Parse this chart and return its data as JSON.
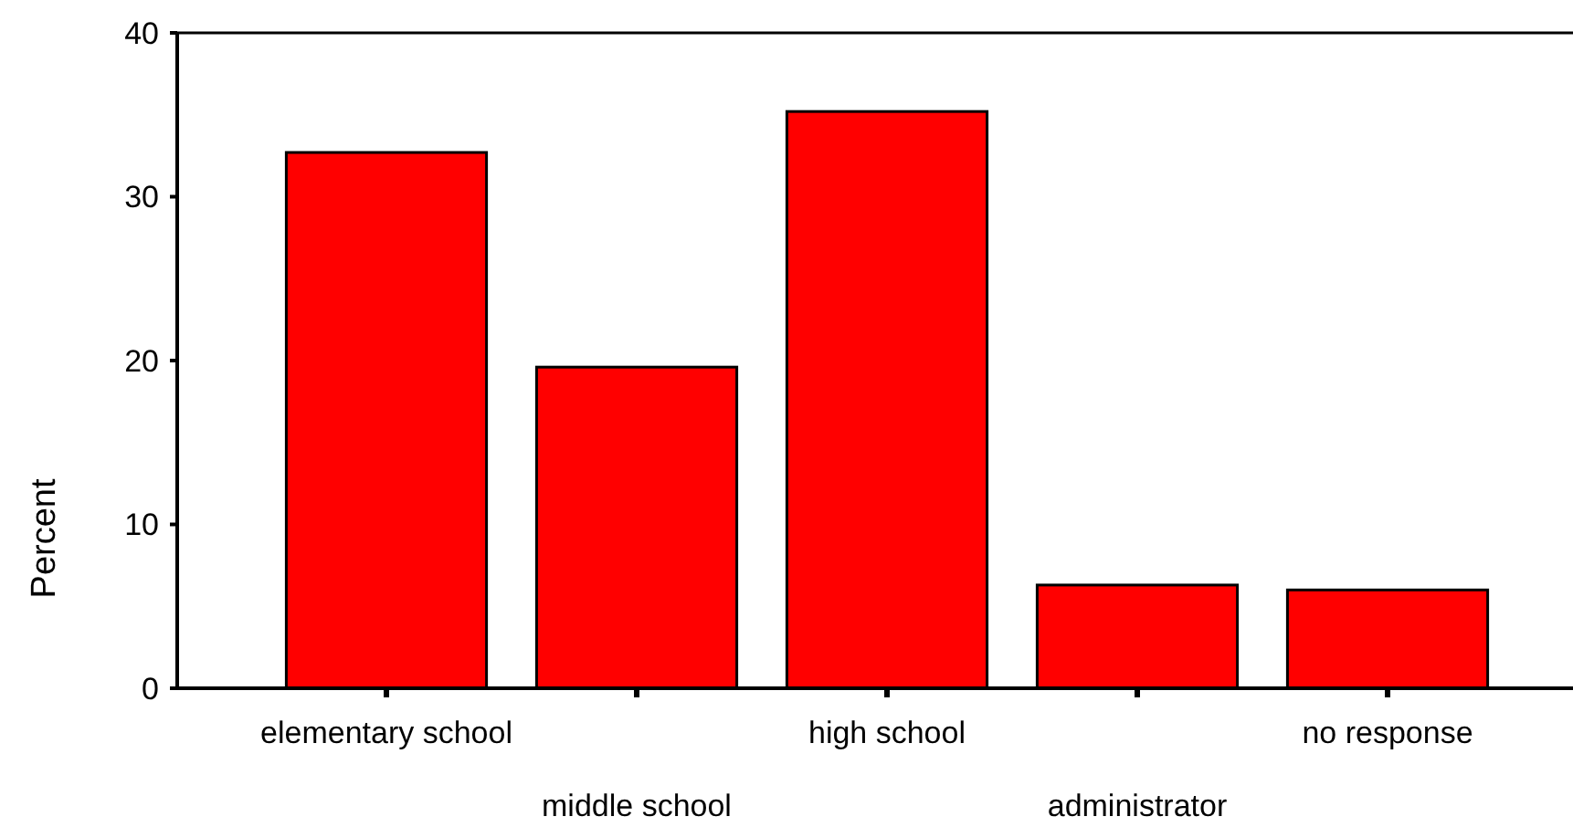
{
  "chart_data": {
    "type": "bar",
    "ylabel": "Percent",
    "categories": [
      "elementary school",
      "middle school",
      "high school",
      "administrator",
      "no response"
    ],
    "values": [
      32.7,
      19.6,
      35.2,
      6.3,
      6.0
    ],
    "color": "#ff0000",
    "ylim": [
      0,
      40
    ],
    "yticks": [
      0,
      10,
      20,
      30,
      40
    ]
  }
}
